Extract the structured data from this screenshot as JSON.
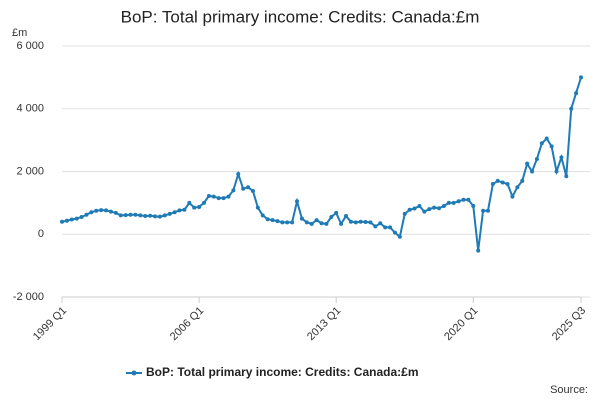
{
  "chart_data": {
    "type": "line",
    "title": "BoP: Total primary income: Credits: Canada:£m",
    "y_unit": "£m",
    "source": "Source:",
    "categories": [
      "1999 Q1",
      null,
      null,
      null,
      null,
      null,
      null,
      null,
      null,
      null,
      null,
      null,
      null,
      null,
      null,
      null,
      null,
      null,
      null,
      null,
      null,
      null,
      null,
      null,
      null,
      null,
      null,
      null,
      "2006 Q1",
      null,
      null,
      null,
      null,
      null,
      null,
      null,
      null,
      null,
      null,
      null,
      null,
      null,
      null,
      null,
      null,
      null,
      null,
      null,
      null,
      null,
      null,
      null,
      null,
      null,
      null,
      null,
      "2013 Q1",
      null,
      null,
      null,
      null,
      null,
      null,
      null,
      null,
      null,
      null,
      null,
      null,
      null,
      null,
      null,
      null,
      null,
      null,
      null,
      null,
      null,
      null,
      null,
      null,
      null,
      null,
      null,
      "2020 Q1",
      null,
      null,
      null,
      null,
      null,
      null,
      null,
      null,
      null,
      null,
      null,
      null,
      null,
      null,
      null,
      null,
      null,
      null,
      null,
      null,
      null,
      "2025 Q3"
    ],
    "series": [
      {
        "name": "BoP: Total primary income: Credits: Canada:£m",
        "color": "#1f7bb6",
        "values": [
          400,
          430,
          470,
          500,
          550,
          620,
          700,
          750,
          770,
          760,
          720,
          680,
          600,
          610,
          620,
          620,
          600,
          580,
          590,
          570,
          560,
          600,
          650,
          700,
          760,
          780,
          1000,
          850,
          870,
          1000,
          1220,
          1200,
          1150,
          1150,
          1200,
          1400,
          1920,
          1450,
          1500,
          1380,
          850,
          600,
          480,
          450,
          420,
          380,
          380,
          380,
          1050,
          500,
          380,
          330,
          450,
          350,
          330,
          550,
          680,
          330,
          580,
          400,
          380,
          400,
          390,
          380,
          250,
          350,
          220,
          220,
          50,
          -80,
          650,
          780,
          820,
          900,
          720,
          800,
          850,
          830,
          900,
          1000,
          1000,
          1050,
          1100,
          1100,
          900,
          -520,
          750,
          750,
          1600,
          1700,
          1650,
          1600,
          1200,
          1500,
          1700,
          2250,
          2000,
          2400,
          2900,
          3050,
          2800,
          2000,
          2450,
          1850,
          4000,
          4500,
          5000
        ]
      }
    ],
    "ylim": [
      -2000,
      6000
    ],
    "yticks": [
      {
        "value": -2000,
        "label": "-2 000"
      },
      0,
      {
        "value": 2000,
        "label": "2 000"
      },
      {
        "value": 4000,
        "label": "4 000"
      },
      {
        "value": 6000,
        "label": "6 000"
      }
    ],
    "grid": true
  }
}
